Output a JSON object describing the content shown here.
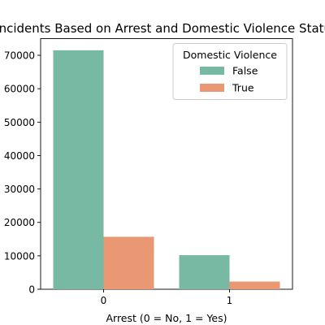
{
  "chart_data": {
    "type": "bar",
    "title": "Incidents Based on Arrest and Domestic Violence Status",
    "xlabel": "Arrest (0 = No, 1 = Yes)",
    "ylabel": "",
    "categories": [
      "0",
      "1"
    ],
    "ylim": [
      0,
      75000
    ],
    "yticks": [
      0,
      10000,
      20000,
      30000,
      40000,
      50000,
      60000,
      70000
    ],
    "ytick_labels": [
      "0",
      "10000",
      "20000",
      "30000",
      "40000",
      "50000",
      "60000",
      "70000"
    ],
    "grid": false,
    "legend": {
      "title": "Domestic Violence",
      "placement": "top-right"
    },
    "series": [
      {
        "name": "False",
        "color": "#77b9a3",
        "values": [
          71500,
          10200
        ]
      },
      {
        "name": "True",
        "color": "#ea9874",
        "values": [
          15700,
          2300
        ]
      }
    ]
  }
}
